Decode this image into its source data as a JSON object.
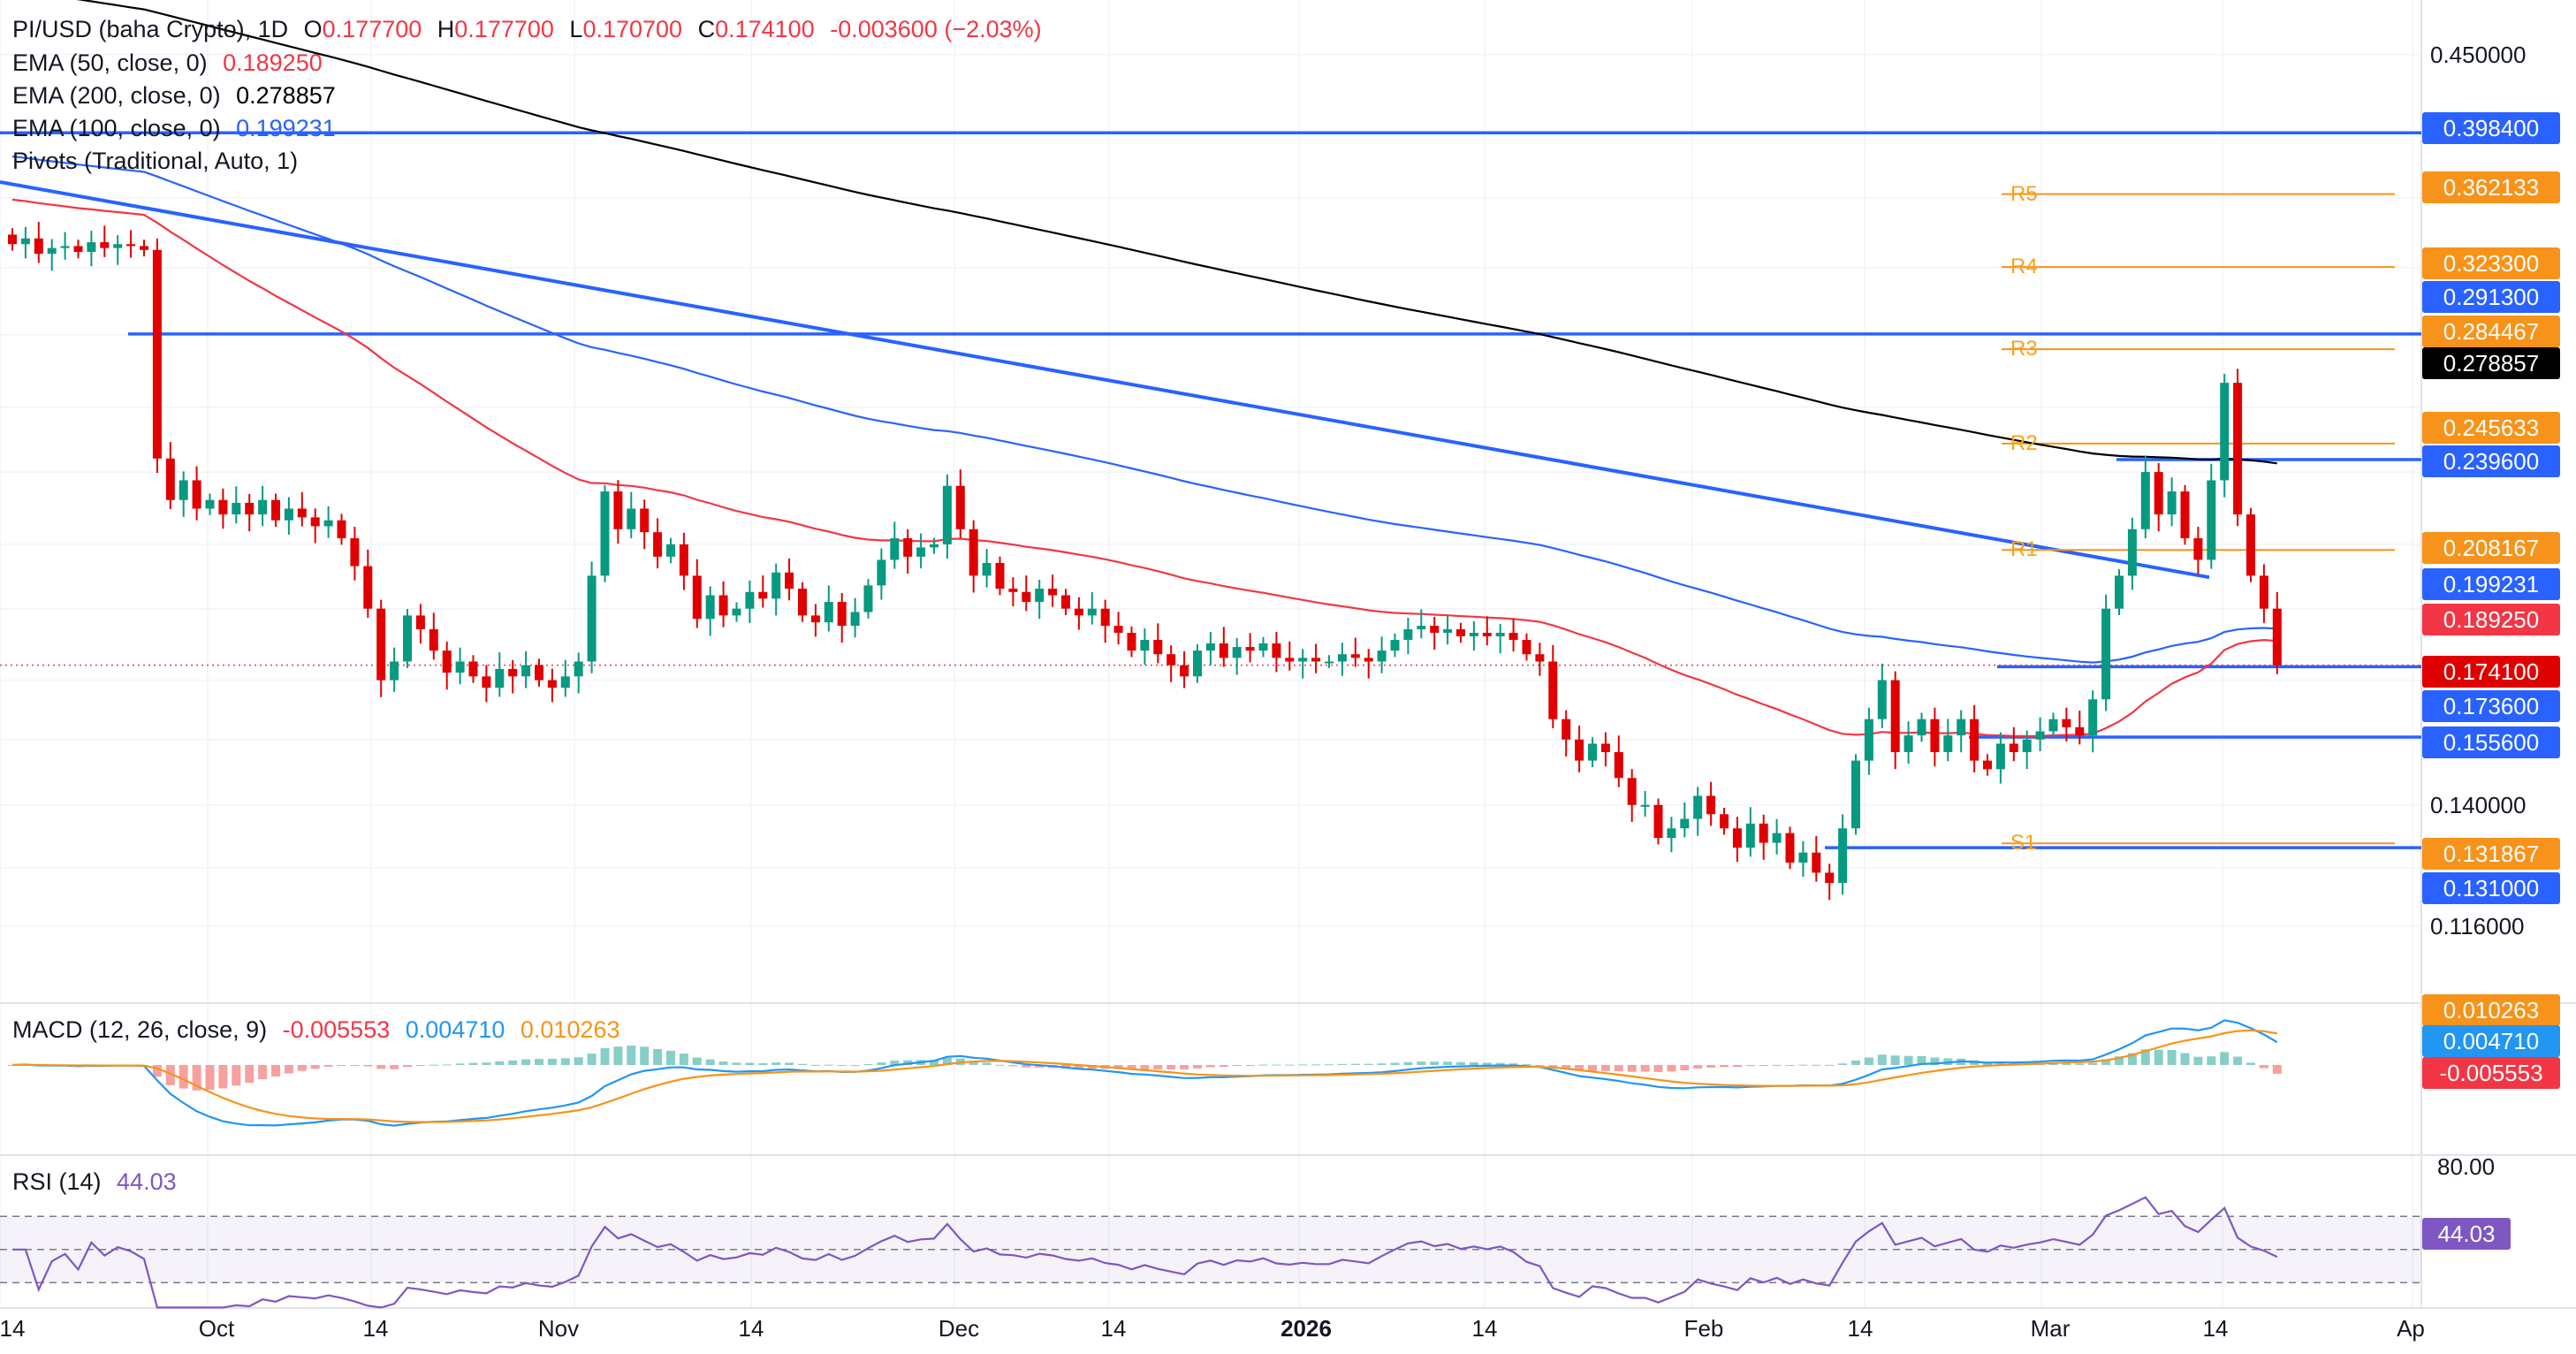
{
  "legend": {
    "symbol": "PI/USD (baha Crypto), 1D",
    "ohlc": {
      "o_label": "O",
      "o": "0.177700",
      "h_label": "H",
      "h": "0.177700",
      "l_label": "L",
      "l": "0.170700",
      "c_label": "C",
      "c": "0.174100",
      "change": "-0.003600 (−2.03%)"
    },
    "ema50": {
      "label": "EMA (50, close, 0)",
      "value": "0.189250"
    },
    "ema200": {
      "label": "EMA (200, close, 0)",
      "value": "0.278857"
    },
    "ema100": {
      "label": "EMA (100, close, 0)",
      "value": "0.199231"
    },
    "pivots": {
      "label": "Pivots (Traditional, Auto, 1)"
    },
    "macd": {
      "label": "MACD (12, 26, close, 9)",
      "hist": "-0.005553",
      "macd": "0.004710",
      "signal": "0.010263"
    },
    "rsi": {
      "label": "RSI (14)",
      "value": "44.03"
    }
  },
  "price_axis": {
    "labels": [
      "0.450000",
      "0.140000",
      "0.116000"
    ],
    "tags": [
      {
        "value": "0.398400",
        "color": "#2962ff"
      },
      {
        "value": "0.362133",
        "color": "#f7931a"
      },
      {
        "value": "0.323300",
        "color": "#f7931a"
      },
      {
        "value": "0.291300",
        "color": "#2962ff"
      },
      {
        "value": "0.284467",
        "color": "#f7931a"
      },
      {
        "value": "0.278857",
        "color": "#000000"
      },
      {
        "value": "0.245633",
        "color": "#f7931a"
      },
      {
        "value": "0.239600",
        "color": "#2962ff"
      },
      {
        "value": "0.208167",
        "color": "#f7931a"
      },
      {
        "value": "0.199231",
        "color": "#2962ff"
      },
      {
        "value": "0.189250",
        "color": "#f23645"
      },
      {
        "value": "0.174100",
        "color": "#e00000"
      },
      {
        "value": "0.173600",
        "color": "#2962ff"
      },
      {
        "value": "0.155600",
        "color": "#2962ff"
      },
      {
        "value": "0.131867",
        "color": "#f7931a"
      },
      {
        "value": "0.131000",
        "color": "#2962ff"
      }
    ]
  },
  "macd_axis": {
    "tags": [
      {
        "value": "0.010263",
        "color": "#f7931a"
      },
      {
        "value": "0.004710",
        "color": "#2196f3"
      },
      {
        "value": "-0.005553",
        "color": "#f23645"
      }
    ]
  },
  "rsi_axis": {
    "label_80": "80.00",
    "tag": {
      "value": "44.03",
      "color": "#7e57c2"
    }
  },
  "time_axis": [
    "14",
    "Oct",
    "14",
    "Nov",
    "14",
    "Dec",
    "14",
    "2026",
    "14",
    "Feb",
    "14",
    "Mar",
    "14",
    "Ap"
  ],
  "pivot_labels": [
    "R5",
    "R4",
    "R3",
    "R2",
    "R1",
    "S1"
  ],
  "chart_data": {
    "type": "candlestick",
    "y_scale": "log",
    "ylim": [
      0.105,
      0.47
    ],
    "pivots": {
      "R5": 0.362133,
      "R4": 0.3233,
      "R3": 0.284467,
      "R2": 0.245633,
      "R1": 0.208167,
      "S1": 0.131867
    },
    "horizontal_levels": [
      0.3984,
      0.2913,
      0.2396,
      0.1736,
      0.1556,
      0.131
    ],
    "trendline": {
      "from": 0.369,
      "to": 0.1995
    },
    "ema_legend_values": {
      "ema50": 0.18925,
      "ema100": 0.199231,
      "ema200": 0.278857
    },
    "closes": [
      0.335,
      0.338,
      0.33,
      0.333,
      0.334,
      0.331,
      0.336,
      0.333,
      0.335,
      0.334,
      0.332,
      0.24,
      0.225,
      0.232,
      0.222,
      0.225,
      0.22,
      0.224,
      0.22,
      0.225,
      0.218,
      0.222,
      0.219,
      0.216,
      0.218,
      0.212,
      0.203,
      0.19,
      0.17,
      0.175,
      0.188,
      0.184,
      0.178,
      0.172,
      0.175,
      0.171,
      0.168,
      0.173,
      0.171,
      0.174,
      0.17,
      0.168,
      0.171,
      0.175,
      0.2,
      0.228,
      0.215,
      0.222,
      0.214,
      0.206,
      0.21,
      0.2,
      0.187,
      0.194,
      0.188,
      0.19,
      0.195,
      0.193,
      0.201,
      0.196,
      0.188,
      0.186,
      0.192,
      0.185,
      0.189,
      0.197,
      0.205,
      0.212,
      0.206,
      0.209,
      0.21,
      0.23,
      0.215,
      0.2,
      0.204,
      0.196,
      0.195,
      0.192,
      0.196,
      0.194,
      0.19,
      0.188,
      0.19,
      0.185,
      0.183,
      0.178,
      0.181,
      0.177,
      0.174,
      0.171,
      0.178,
      0.18,
      0.176,
      0.179,
      0.178,
      0.18,
      0.176,
      0.175,
      0.176,
      0.175,
      0.175,
      0.177,
      0.176,
      0.175,
      0.178,
      0.181,
      0.184,
      0.185,
      0.183,
      0.184,
      0.182,
      0.183,
      0.182,
      0.183,
      0.181,
      0.177,
      0.175,
      0.16,
      0.155,
      0.15,
      0.154,
      0.152,
      0.146,
      0.14,
      0.14,
      0.133,
      0.135,
      0.137,
      0.142,
      0.138,
      0.135,
      0.131,
      0.136,
      0.132,
      0.134,
      0.128,
      0.13,
      0.126,
      0.124,
      0.135,
      0.15,
      0.16,
      0.17,
      0.152,
      0.156,
      0.16,
      0.152,
      0.156,
      0.16,
      0.15,
      0.148,
      0.154,
      0.152,
      0.155,
      0.157,
      0.16,
      0.158,
      0.156,
      0.165,
      0.19,
      0.2,
      0.215,
      0.235,
      0.22,
      0.228,
      0.212,
      0.205,
      0.232,
      0.27,
      0.22,
      0.2,
      0.19,
      0.174
    ]
  }
}
